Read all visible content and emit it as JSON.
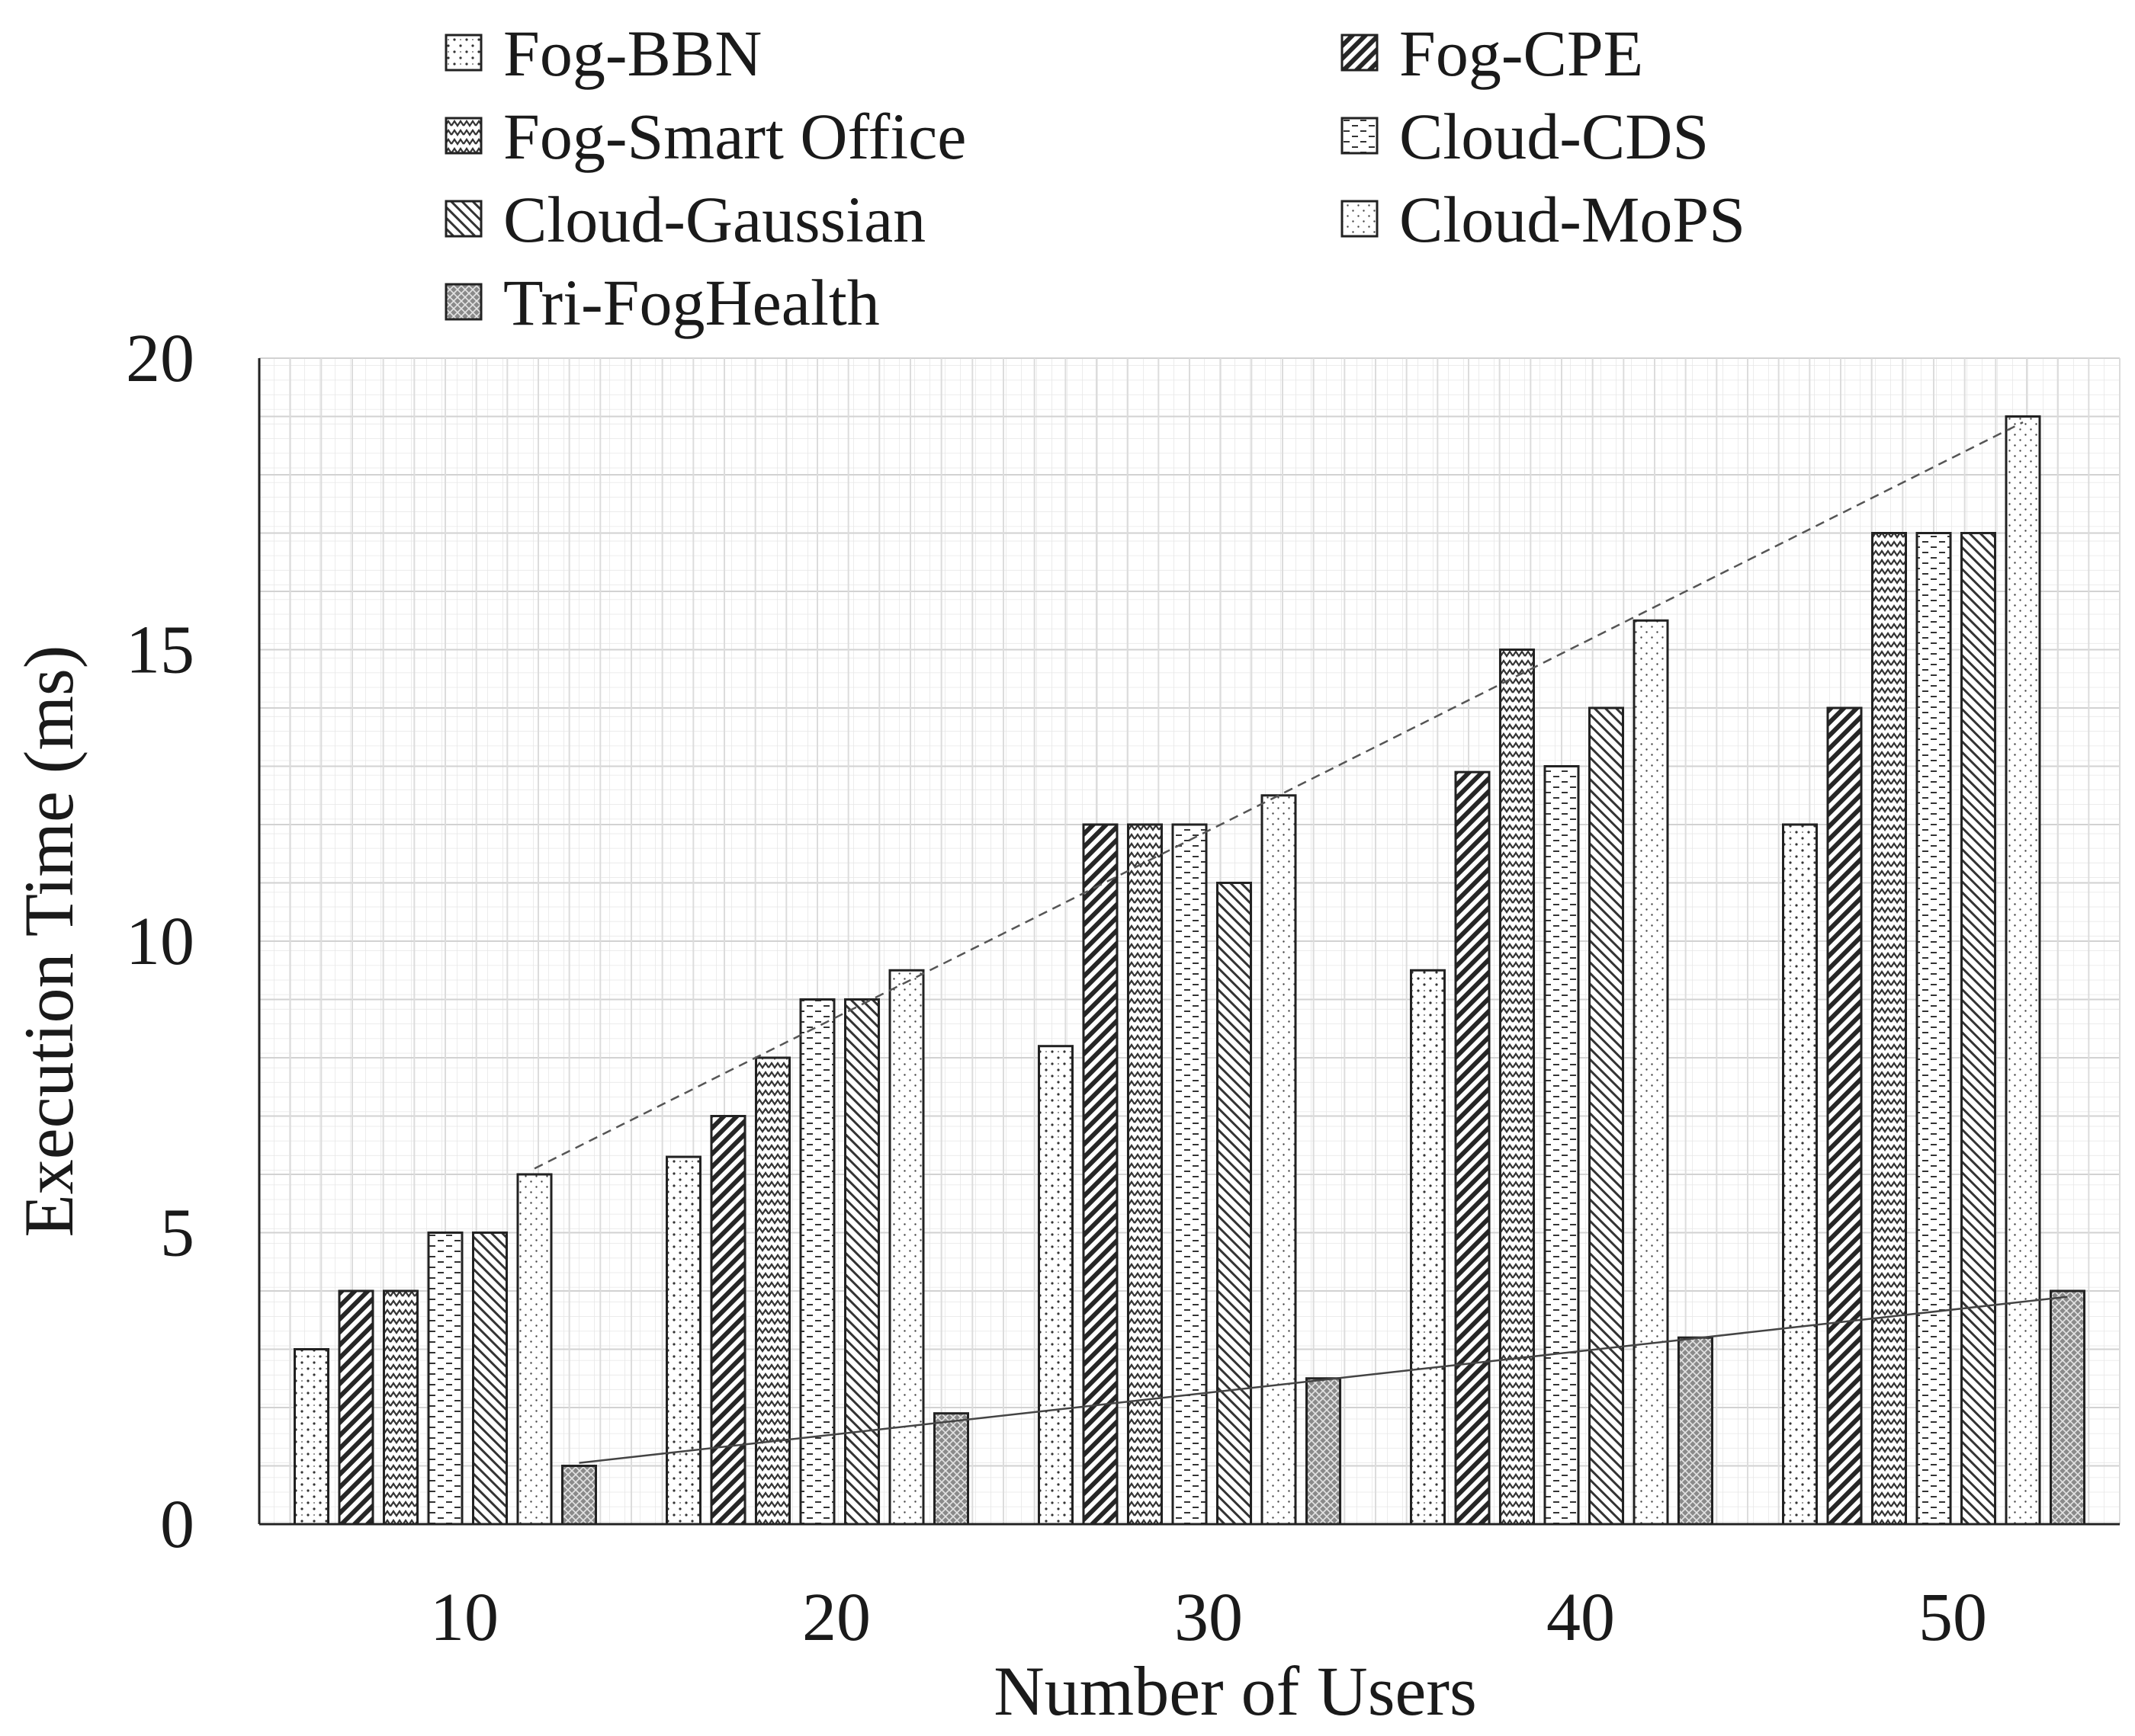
{
  "chart_data": {
    "type": "bar",
    "title": "",
    "xlabel": "Number of Users",
    "ylabel": "Execution Time (ms)",
    "categories": [
      "10",
      "20",
      "30",
      "40",
      "50"
    ],
    "ylim": [
      0,
      20
    ],
    "yticks": [
      "0",
      "5",
      "10",
      "15",
      "20"
    ],
    "grid": true,
    "legend_position": "top",
    "series": [
      {
        "name": "Fog-BBN",
        "pattern": "dots",
        "values": [
          3,
          6.3,
          8.2,
          9.5,
          12
        ]
      },
      {
        "name": "Fog-CPE",
        "pattern": "dark-diagonal",
        "values": [
          4,
          7,
          12,
          12.9,
          14
        ]
      },
      {
        "name": "Fog-Smart Office",
        "pattern": "zigzag",
        "values": [
          4,
          8,
          12,
          15,
          17
        ]
      },
      {
        "name": "Cloud-CDS",
        "pattern": "dashes",
        "values": [
          5,
          9,
          12,
          13,
          17
        ]
      },
      {
        "name": "Cloud-Gaussian",
        "pattern": "back-diagonal",
        "values": [
          5,
          9,
          11,
          14,
          17
        ]
      },
      {
        "name": "Cloud-MoPS",
        "pattern": "fine-dots",
        "values": [
          6,
          9.5,
          12.5,
          15.5,
          19
        ]
      },
      {
        "name": "Tri-FogHealth",
        "pattern": "crosshatch",
        "values": [
          1,
          1.9,
          2.5,
          3.2,
          4
        ]
      }
    ],
    "trendlines": [
      {
        "series": "Cloud-MoPS",
        "style": "dashed",
        "from": 6.1,
        "to": 18.9
      },
      {
        "series": "Tri-FogHealth",
        "style": "solid",
        "from": 1.05,
        "to": 3.9
      }
    ]
  }
}
